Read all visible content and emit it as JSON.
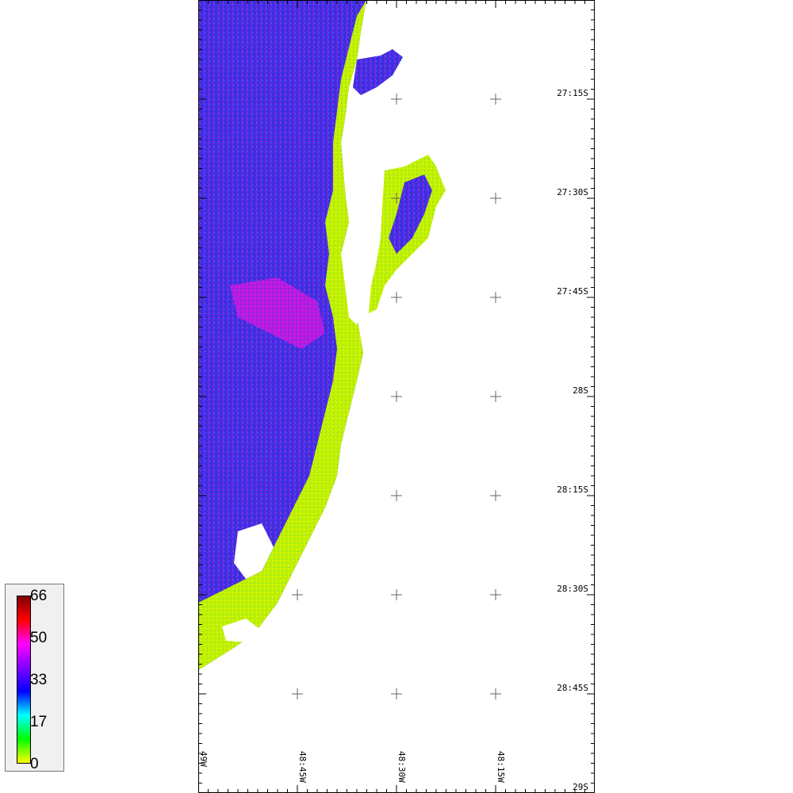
{
  "map": {
    "latitude_labels": [
      "27:15S",
      "27:30S",
      "27:45S",
      "28S",
      "28:15S",
      "28:30S",
      "28:45S",
      "29S"
    ],
    "longitude_labels": [
      "49W",
      "48:45W",
      "48:30W",
      "48:15W"
    ]
  },
  "colorbar": {
    "ticks": [
      "66",
      "50",
      "33",
      "17",
      "0"
    ],
    "min": 0,
    "max": 66,
    "colors": [
      "#ffff00",
      "#00ff00",
      "#00ffff",
      "#0000ff",
      "#8000ff",
      "#ff00ff",
      "#ff0000",
      "#800000"
    ]
  },
  "colors": {
    "land_high": "#6a1fd8",
    "land_mid": "#2a34e6",
    "land_low": "#c8f500",
    "ocean": "#ffffff"
  }
}
